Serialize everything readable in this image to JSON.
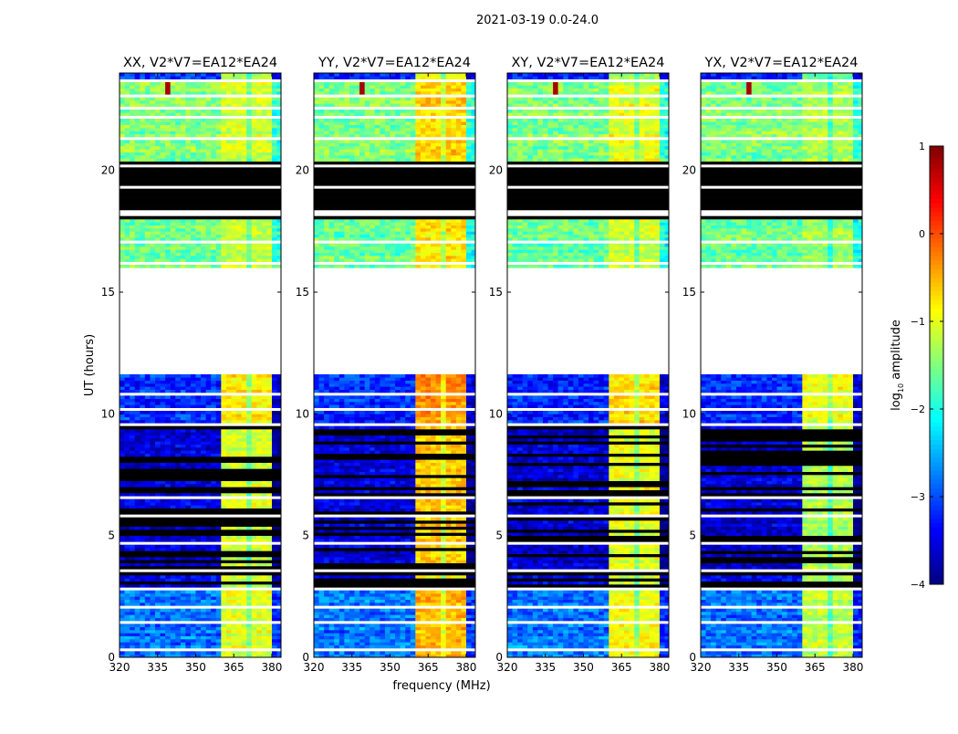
{
  "chart_data": {
    "type": "heatmap",
    "title": "2021-03-19 0.0-24.0",
    "xlabel": "frequency (MHz)",
    "ylabel": "UT (hours)",
    "xlim": [
      320,
      383.6
    ],
    "ylim": [
      0,
      24
    ],
    "xticks": [
      320,
      335,
      350,
      365,
      380
    ],
    "xtick_labels": [
      "320",
      "335",
      "350",
      "365",
      "380"
    ],
    "yticks": [
      0,
      5,
      10,
      15,
      20
    ],
    "ytick_labels": [
      "0",
      "5",
      "10",
      "15",
      "20"
    ],
    "panels": [
      {
        "title": "XX, V2*V7=EA12*EA24",
        "band_offset": 0
      },
      {
        "title": "YY, V2*V7=EA12*EA24",
        "band_offset": 0.45
      },
      {
        "title": "XY, V2*V7=EA12*EA24",
        "band_offset": 0.1
      },
      {
        "title": "YX, V2*V7=EA12*EA24",
        "band_offset": -0.15
      }
    ],
    "band_mhz": [
      360.3,
      379.7
    ],
    "band_dips_mhz": [
      366,
      371,
      376
    ],
    "segments": [
      {
        "t0": 0,
        "t1": 2.8,
        "state": "data",
        "base": -2.8,
        "band": -1.0,
        "flag_prob": 0
      },
      {
        "t0": 2.8,
        "t1": 3.4,
        "state": "data",
        "base": -3.5,
        "band": -1.2,
        "flag_prob": 0.6
      },
      {
        "t0": 3.4,
        "t1": 9.6,
        "state": "data",
        "base": -3.6,
        "band": -1.1,
        "flag_prob": 0.35
      },
      {
        "t0": 9.6,
        "t1": 11.6,
        "state": "data",
        "base": -3.2,
        "band": -0.8,
        "flag_prob": 0.05
      },
      {
        "t0": 11.6,
        "t1": 16.0,
        "state": "blank"
      },
      {
        "t0": 16.0,
        "t1": 17.9,
        "state": "data",
        "base": -1.6,
        "band": -1.2,
        "flag_prob": 0
      },
      {
        "t0": 17.9,
        "t1": 20.3,
        "state": "flagged"
      },
      {
        "t0": 20.3,
        "t1": 23.7,
        "state": "data",
        "base": -1.5,
        "band": -1.1,
        "flag_prob": 0
      },
      {
        "t0": 23.7,
        "t1": 24.0,
        "state": "data",
        "base": -3.2,
        "band": -1.4,
        "flag_prob": 0
      }
    ],
    "gap_hours": [
      0.3,
      1.45,
      2.1,
      2.8,
      3.55,
      4.7,
      5.8,
      6.6,
      9.6,
      10.2,
      10.85,
      16.2,
      17.1,
      18.15,
      18.3,
      19.35,
      20.2,
      21.3,
      22.2,
      22.55,
      23.05,
      23.65
    ],
    "hotspot": {
      "freq_mhz": 339,
      "t0": 23.0,
      "t1": 23.6,
      "value": 0.8
    },
    "colorbar": {
      "label": "log",
      "label_sub": "10",
      "label_rest": " amplitude",
      "range": [
        -4,
        1
      ],
      "ticks": [
        1,
        0,
        -1,
        -2,
        -3,
        -4
      ],
      "tick_labels": [
        "1",
        "0",
        "−1",
        "−2",
        "−3",
        "−4"
      ],
      "colormap": "jet"
    },
    "colors": {
      "flagged": "#000000",
      "blank": "#ffffff"
    }
  }
}
